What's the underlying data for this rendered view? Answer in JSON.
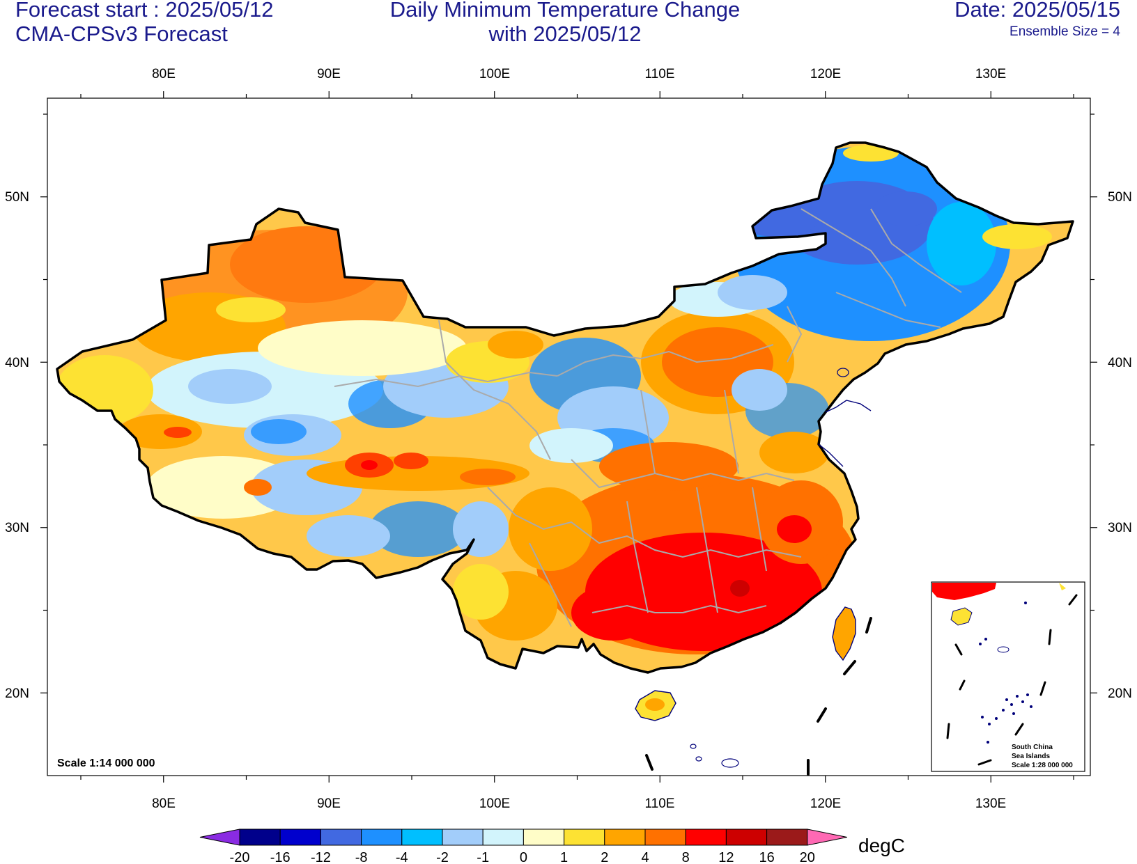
{
  "header": {
    "forecast_start": "Forecast start : 2025/05/12",
    "model": "CMA-CPSv3 Forecast",
    "title_line1": "Daily Minimum Temperature Change",
    "title_line2": "with 2025/05/12",
    "date": "Date: 2025/05/15",
    "ensemble": "Ensemble Size = 4"
  },
  "axes": {
    "lon_labels": [
      "80E",
      "90E",
      "100E",
      "110E",
      "120E",
      "130E"
    ],
    "lat_labels": [
      "50N",
      "40N",
      "30N",
      "20N"
    ]
  },
  "scale_main": "Scale 1:14 000 000",
  "inset": {
    "line1": "South China",
    "line2": "Sea Islands",
    "line3": "Scale 1:28 000 000"
  },
  "colorbar": {
    "unit": "degC",
    "levels": [
      "-20",
      "-16",
      "-12",
      "-8",
      "-4",
      "-2",
      "-1",
      "0",
      "1",
      "2",
      "4",
      "8",
      "12",
      "16",
      "20"
    ],
    "colors": [
      "#8a2be2",
      "#00008b",
      "#0000cd",
      "#4169e1",
      "#1e90ff",
      "#00bfff",
      "#a2cdfa",
      "#d2f4fc",
      "#fffdc8",
      "#fde233",
      "#ffa500",
      "#ff7100",
      "#ff0000",
      "#cd0000",
      "#9b1a1a",
      "#ff69b4"
    ]
  },
  "map_colors": {
    "frame": "#000000",
    "border": "#000000",
    "province": "#aaaaaa",
    "coast": "#00007a"
  }
}
